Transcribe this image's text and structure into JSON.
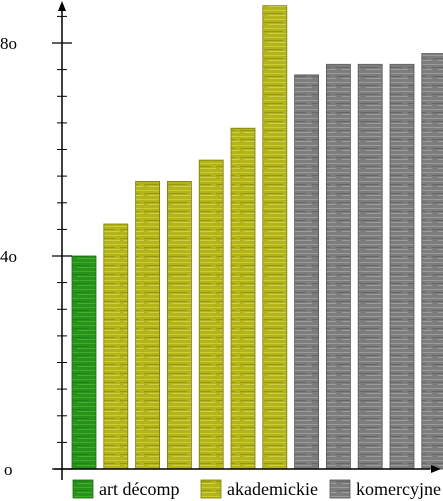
{
  "chart_data": {
    "type": "bar",
    "title": "",
    "xlabel": "",
    "ylabel": "",
    "ylim": [
      0,
      85
    ],
    "yticks": [
      0,
      40,
      80
    ],
    "ytick_labels": [
      "o",
      "4o",
      "8o"
    ],
    "grid": false,
    "legend_position": "bottom",
    "categories": [
      "",
      "",
      "",
      "",
      "",
      "",
      "",
      "",
      "",
      "",
      "",
      ""
    ],
    "values": [
      40,
      46,
      54,
      54,
      58,
      64,
      87,
      74,
      76,
      76,
      76,
      78
    ],
    "bar_groups": [
      0,
      1,
      1,
      1,
      1,
      1,
      1,
      2,
      2,
      2,
      2,
      2
    ],
    "series": [
      {
        "name": "art décomp",
        "color": "#2e9e1e"
      },
      {
        "name": "akademickie",
        "color": "#b8b81a"
      },
      {
        "name": "komercyjne",
        "color": "#808080"
      }
    ]
  }
}
